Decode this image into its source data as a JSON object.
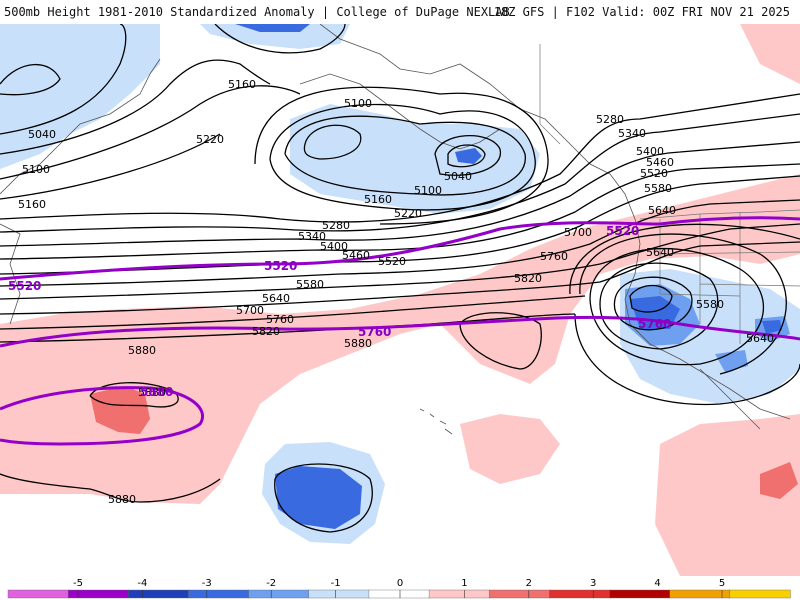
{
  "header": {
    "title_left": "500mb Height 1981-2010 Standardized Anomaly | College of DuPage NEXLAB",
    "title_right": "18Z GFS | F102 Valid: 00Z FRI NOV 21 2025"
  },
  "contour_labels": [
    "5160",
    "5100",
    "5040",
    "5220",
    "5100",
    "5160",
    "5040",
    "5100",
    "5160",
    "5220",
    "5280",
    "5340",
    "5400",
    "5460",
    "5520",
    "5580",
    "5640",
    "5700",
    "5760",
    "5820",
    "5880",
    "5280",
    "5340",
    "5400",
    "5460",
    "5520",
    "5580",
    "5640",
    "5700",
    "5760",
    "5820",
    "5640",
    "5580",
    "5640",
    "5880",
    "5880",
    "5880"
  ],
  "purple_labels": [
    "5520",
    "5520",
    "5520",
    "5760",
    "5760",
    "5880"
  ],
  "colorbar": {
    "ticks": [
      "-5",
      "-4",
      "-3",
      "-2",
      "-1",
      "0",
      "1",
      "2",
      "3",
      "4",
      "5"
    ],
    "colors": [
      "#e060e0",
      "#9a00c8",
      "#1f3fb8",
      "#3a6ae0",
      "#6fa0f0",
      "#c8e0fa",
      "#ffffff",
      "#ffc8c8",
      "#f07070",
      "#e03030",
      "#b00000",
      "#f0a000",
      "#f8d000"
    ]
  }
}
